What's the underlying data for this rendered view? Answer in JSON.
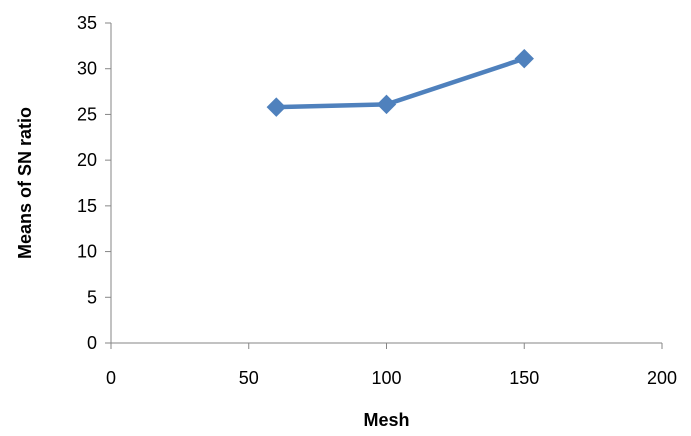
{
  "chart_data": {
    "type": "scatter",
    "title": "",
    "xlabel": "Mesh",
    "ylabel": "Means of SN ratio",
    "xlim": [
      0,
      200
    ],
    "ylim": [
      0,
      35
    ],
    "xticks": [
      0,
      50,
      100,
      150,
      200
    ],
    "yticks": [
      0,
      5,
      10,
      15,
      20,
      25,
      30,
      35
    ],
    "grid": false,
    "legend": "none",
    "series": [
      {
        "color": "#4f81bd",
        "marker": "diamond",
        "line": true,
        "points": [
          {
            "x": 60,
            "y": 25.8
          },
          {
            "x": 100,
            "y": 26.1
          },
          {
            "x": 150,
            "y": 31.1
          }
        ]
      }
    ]
  }
}
